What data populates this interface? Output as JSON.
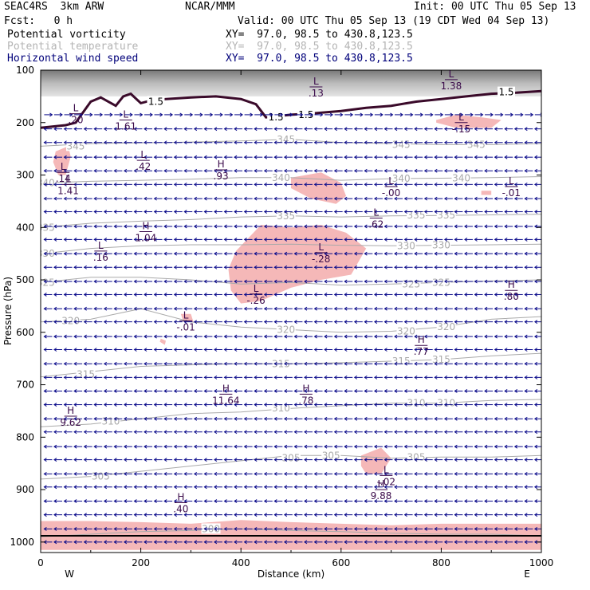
{
  "header": {
    "model": "SEAC4RS  3km ARW",
    "org": "NCAR/MMM",
    "init": "Init: 00 UTC Thu 05 Sep 13",
    "fcst": "Fcst:   0 h",
    "valid": "Valid: 00 UTC Thu 05 Sep 13 (19 CDT Wed 04 Sep 13)"
  },
  "fields": [
    {
      "name": "Potential vorticity",
      "xy": "XY=  97.0, 98.5 to 430.8,123.5",
      "color": "#000000"
    },
    {
      "name": "Potential temperature",
      "xy": "XY=  97.0, 98.5 to 430.8,123.5",
      "color": "#b4b4b4"
    },
    {
      "name": "Horizontal wind speed",
      "xy": "XY=  97.0, 98.5 to 430.8,123.5",
      "color": "#00007a"
    }
  ],
  "colors": {
    "pv_fill": "#f5b8b8",
    "theta": "#aaaaaa",
    "pv_line": "#3a0a2a",
    "wind": "#0a0a8a",
    "stratosphere": "#7a7a7a"
  },
  "chart_data": {
    "type": "cross-section",
    "xlabel": "Distance (km)",
    "ylabel": "Pressure (hPa)",
    "xlim": [
      0,
      1000
    ],
    "ylim": [
      1020,
      100
    ],
    "x_ticks": [
      "0",
      "200",
      "400",
      "600",
      "800",
      "1000"
    ],
    "y_ticks": [
      "100",
      "200",
      "300",
      "400",
      "500",
      "600",
      "700",
      "800",
      "900",
      "1000"
    ],
    "end_labels": {
      "left": "W",
      "right": "E"
    },
    "theta_contours": [
      {
        "label": "345",
        "x": [
          0,
          100,
          250,
          400,
          500,
          600,
          700,
          800,
          900,
          1000
        ],
        "p": [
          245,
          240,
          238,
          235,
          232,
          238,
          240,
          242,
          242,
          240
        ]
      },
      {
        "label": "340",
        "x": [
          0,
          100,
          200,
          300,
          400,
          500,
          600,
          700,
          800,
          900,
          1000
        ],
        "p": [
          315,
          312,
          310,
          308,
          305,
          305,
          310,
          307,
          306,
          305,
          303
        ]
      },
      {
        "label": "335",
        "x": [
          0,
          100,
          200,
          300,
          400,
          500,
          600,
          700,
          800,
          900,
          1000
        ],
        "p": [
          400,
          392,
          388,
          385,
          380,
          378,
          380,
          378,
          377,
          376,
          375
        ]
      },
      {
        "label": "330",
        "x": [
          0,
          100,
          200,
          300,
          400,
          500,
          600,
          700,
          800,
          900,
          1000
        ],
        "p": [
          450,
          440,
          435,
          433,
          433,
          432,
          434,
          435,
          434,
          433,
          432
        ]
      },
      {
        "label": "325",
        "x": [
          0,
          100,
          200,
          300,
          400,
          500,
          600,
          700,
          800,
          900,
          1000
        ],
        "p": [
          505,
          495,
          495,
          500,
          508,
          505,
          510,
          508,
          505,
          502,
          500
        ]
      },
      {
        "label": "320",
        "x": [
          0,
          100,
          200,
          300,
          400,
          500,
          600,
          700,
          800,
          900,
          1000
        ],
        "p": [
          580,
          575,
          555,
          580,
          590,
          595,
          600,
          598,
          590,
          575,
          570
        ]
      },
      {
        "label": "315",
        "x": [
          0,
          100,
          200,
          300,
          400,
          500,
          600,
          700,
          800,
          900,
          1000
        ],
        "p": [
          685,
          675,
          665,
          662,
          660,
          660,
          658,
          655,
          652,
          645,
          640
        ]
      },
      {
        "label": "310",
        "x": [
          0,
          100,
          200,
          300,
          400,
          500,
          600,
          700,
          800,
          900,
          1000
        ],
        "p": [
          780,
          775,
          765,
          755,
          752,
          745,
          740,
          735,
          735,
          730,
          728
        ]
      },
      {
        "label": "305",
        "x": [
          0,
          100,
          200,
          300,
          400,
          500,
          600,
          700,
          800,
          900,
          1000
        ],
        "p": [
          880,
          875,
          865,
          855,
          845,
          835,
          835,
          840,
          838,
          838,
          835
        ]
      },
      {
        "label": "300",
        "x": [
          0,
          100,
          200,
          300,
          400,
          500,
          600,
          700,
          800,
          900,
          1000
        ],
        "p": [
          990,
          985,
          980,
          978,
          975,
          978,
          980,
          983,
          985,
          985,
          988
        ]
      }
    ],
    "theta_labels": [
      {
        "text": "345",
        "x": 70,
        "p": 245
      },
      {
        "text": "345",
        "x": 490,
        "p": 232
      },
      {
        "text": "345",
        "x": 720,
        "p": 242
      },
      {
        "text": "345",
        "x": 870,
        "p": 242
      },
      {
        "text": "340",
        "x": 10,
        "p": 315
      },
      {
        "text": "340",
        "x": 480,
        "p": 305
      },
      {
        "text": "340",
        "x": 720,
        "p": 307
      },
      {
        "text": "340",
        "x": 840,
        "p": 306
      },
      {
        "text": "335",
        "x": 10,
        "p": 400
      },
      {
        "text": "335",
        "x": 490,
        "p": 378
      },
      {
        "text": "335",
        "x": 750,
        "p": 377
      },
      {
        "text": "335",
        "x": 810,
        "p": 377
      },
      {
        "text": "330",
        "x": 10,
        "p": 450
      },
      {
        "text": "330",
        "x": 730,
        "p": 435
      },
      {
        "text": "330",
        "x": 800,
        "p": 434
      },
      {
        "text": "325",
        "x": 10,
        "p": 505
      },
      {
        "text": "325",
        "x": 740,
        "p": 508
      },
      {
        "text": "325",
        "x": 800,
        "p": 505
      },
      {
        "text": "320",
        "x": 60,
        "p": 578
      },
      {
        "text": "320",
        "x": 490,
        "p": 595
      },
      {
        "text": "320",
        "x": 730,
        "p": 598
      },
      {
        "text": "320",
        "x": 810,
        "p": 590
      },
      {
        "text": "315",
        "x": 90,
        "p": 680
      },
      {
        "text": "315",
        "x": 480,
        "p": 660
      },
      {
        "text": "315",
        "x": 720,
        "p": 655
      },
      {
        "text": "315",
        "x": 800,
        "p": 652
      },
      {
        "text": "310",
        "x": 140,
        "p": 770
      },
      {
        "text": "310",
        "x": 480,
        "p": 745
      },
      {
        "text": "310",
        "x": 750,
        "p": 735
      },
      {
        "text": "310",
        "x": 810,
        "p": 735
      },
      {
        "text": "305",
        "x": 120,
        "p": 875
      },
      {
        "text": "305",
        "x": 500,
        "p": 840
      },
      {
        "text": "305",
        "x": 580,
        "p": 835
      },
      {
        "text": "305",
        "x": 750,
        "p": 838
      },
      {
        "text": "300",
        "x": 340,
        "p": 975
      }
    ],
    "pv_15_contour": {
      "label": "1.5",
      "x": [
        0,
        50,
        70,
        85,
        100,
        120,
        150,
        165,
        180,
        200,
        220,
        250,
        300,
        350,
        400,
        430,
        450,
        500,
        550,
        600,
        650,
        700,
        750,
        800,
        850,
        900,
        950,
        1000
      ],
      "p": [
        210,
        205,
        200,
        180,
        160,
        152,
        168,
        150,
        145,
        163,
        158,
        155,
        152,
        150,
        155,
        165,
        190,
        185,
        182,
        178,
        172,
        168,
        160,
        155,
        150,
        145,
        143,
        140
      ]
    },
    "pv_15_labels": [
      {
        "text": "1.5",
        "x": 230,
        "p": 160
      },
      {
        "text": "1.5",
        "x": 470,
        "p": 190
      },
      {
        "text": "1.5",
        "x": 530,
        "p": 185
      },
      {
        "text": "1.5",
        "x": 930,
        "p": 142
      }
    ],
    "pv_shaded_regions": [
      {
        "x": [
          30,
          55,
          60,
          50,
          35,
          25
        ],
        "p": [
          255,
          245,
          265,
          300,
          300,
          275
        ]
      },
      {
        "x": [
          500,
          560,
          600,
          610,
          590,
          540,
          500
        ],
        "p": [
          305,
          295,
          315,
          340,
          355,
          345,
          325
        ]
      },
      {
        "x": [
          880,
          900,
          900,
          880
        ],
        "p": [
          330,
          330,
          338,
          338
        ]
      },
      {
        "x": [
          790,
          830,
          880,
          920,
          900,
          830,
          790
        ],
        "p": [
          195,
          185,
          190,
          195,
          210,
          210,
          200
        ]
      },
      {
        "x": [
          390,
          440,
          500,
          560,
          610,
          650,
          620,
          560,
          500,
          440,
          400,
          380,
          375
        ],
        "p": [
          445,
          395,
          400,
          395,
          410,
          440,
          490,
          500,
          515,
          540,
          545,
          520,
          480
        ]
      },
      {
        "x": [
          240,
          250,
          248,
          238
        ],
        "p": [
          612,
          616,
          624,
          618
        ]
      },
      {
        "x": [
          280,
          300,
          305,
          285
        ],
        "p": [
          565,
          565,
          580,
          580
        ]
      },
      {
        "x": [
          640,
          680,
          700,
          680,
          650,
          640
        ],
        "p": [
          835,
          820,
          840,
          870,
          870,
          855
        ]
      },
      {
        "x": [
          0,
          100,
          200,
          300,
          400,
          500,
          600,
          700,
          800,
          900,
          1000,
          1000,
          0
        ],
        "p": [
          960,
          960,
          962,
          965,
          958,
          962,
          965,
          968,
          965,
          965,
          965,
          1015,
          1015
        ]
      }
    ],
    "extrema_labels": [
      {
        "mark": "L",
        "value": "1.38",
        "x": 820,
        "p": 118
      },
      {
        "mark": "L",
        "value": ".13",
        "x": 550,
        "p": 132
      },
      {
        "mark": "L",
        "value": "1.61",
        "x": 170,
        "p": 195
      },
      {
        "mark": "L",
        "value": ".20",
        "x": 70,
        "p": 183
      },
      {
        "mark": "L",
        "value": ".42",
        "x": 205,
        "p": 272
      },
      {
        "mark": "H",
        "value": ".93",
        "x": 360,
        "p": 290
      },
      {
        "mark": "L",
        "value": ".14",
        "x": 45,
        "p": 295
      },
      {
        "mark": "L",
        "value": "1.41",
        "x": 55,
        "p": 318
      },
      {
        "mark": "L",
        "value": "-.00",
        "x": 700,
        "p": 322
      },
      {
        "mark": "L",
        "value": "-.01",
        "x": 940,
        "p": 322
      },
      {
        "mark": "L",
        "value": ".62",
        "x": 670,
        "p": 382
      },
      {
        "mark": "H",
        "value": "1.04",
        "x": 210,
        "p": 408
      },
      {
        "mark": "L",
        "value": ".16",
        "x": 120,
        "p": 445
      },
      {
        "mark": "L",
        "value": "-.28",
        "x": 560,
        "p": 448
      },
      {
        "mark": "L",
        "value": "-.26",
        "x": 430,
        "p": 527
      },
      {
        "mark": "H",
        "value": ".80",
        "x": 940,
        "p": 520
      },
      {
        "mark": "L",
        "value": "-.01",
        "x": 290,
        "p": 578
      },
      {
        "mark": "H",
        "value": ".77",
        "x": 760,
        "p": 625
      },
      {
        "mark": "H",
        "value": "11.64",
        "x": 370,
        "p": 718
      },
      {
        "mark": "H",
        "value": ".78",
        "x": 530,
        "p": 718
      },
      {
        "mark": "H",
        "value": "9.62",
        "x": 60,
        "p": 760
      },
      {
        "mark": "L",
        "value": "-.02",
        "x": 690,
        "p": 873
      },
      {
        "mark": "H",
        "value": "9.88",
        "x": 680,
        "p": 900
      },
      {
        "mark": "H",
        "value": ".40",
        "x": 280,
        "p": 925
      },
      {
        "mark": "L",
        "value": "-.15",
        "x": 840,
        "p": 200
      }
    ],
    "wind_field": {
      "x_positions": [
        15,
        35,
        55,
        75,
        95,
        115,
        135,
        155,
        175,
        195,
        215,
        235,
        255,
        275,
        295,
        315,
        335,
        355,
        375,
        395,
        415,
        435,
        455,
        475,
        495,
        515,
        535,
        555,
        575,
        595,
        615,
        635,
        655,
        675,
        695,
        715,
        735,
        755,
        775,
        795,
        815,
        835,
        855,
        875,
        895,
        915,
        935,
        955,
        975,
        995
      ],
      "levels": [
        {
          "p": 185,
          "u": 1,
          "w": 0
        },
        {
          "p": 212,
          "u": -1,
          "w": 0
        },
        {
          "p": 238,
          "u": -1,
          "w": 0
        },
        {
          "p": 266,
          "u": -1,
          "w": 0
        },
        {
          "p": 292,
          "u": -1,
          "w": 0
        },
        {
          "p": 318,
          "u": -1,
          "w": 0
        },
        {
          "p": 345,
          "u": -1,
          "w": 0
        },
        {
          "p": 370,
          "u": -1,
          "w": 0
        },
        {
          "p": 398,
          "u": -1,
          "w": 0
        },
        {
          "p": 423,
          "u": -1,
          "w": 0
        },
        {
          "p": 450,
          "u": -1,
          "w": 0
        },
        {
          "p": 476,
          "u": -1,
          "w": 0
        },
        {
          "p": 503,
          "u": -1,
          "w": 0
        },
        {
          "p": 528,
          "u": -1,
          "w": 0
        },
        {
          "p": 555,
          "u": -1,
          "w": 0
        },
        {
          "p": 580,
          "u": -1,
          "w": 0
        },
        {
          "p": 608,
          "u": -1,
          "w": 0
        },
        {
          "p": 633,
          "u": -1,
          "w": 0
        },
        {
          "p": 660,
          "u": -1,
          "w": 0
        },
        {
          "p": 686,
          "u": -1,
          "w": 0
        },
        {
          "p": 712,
          "u": -1,
          "w": 0
        },
        {
          "p": 738,
          "u": -1,
          "w": 0
        },
        {
          "p": 765,
          "u": -1,
          "w": 0
        },
        {
          "p": 790,
          "u": -1,
          "w": 0
        },
        {
          "p": 818,
          "u": -1,
          "w": 0
        },
        {
          "p": 843,
          "u": -1,
          "w": 0
        },
        {
          "p": 870,
          "u": -1,
          "w": 0
        },
        {
          "p": 895,
          "u": -1,
          "w": 0
        },
        {
          "p": 922,
          "u": -1,
          "w": 0
        },
        {
          "p": 948,
          "u": -1,
          "w": 0
        },
        {
          "p": 975,
          "u": -1,
          "w": 0
        },
        {
          "p": 1000,
          "u": -1,
          "w": 0
        }
      ]
    }
  }
}
